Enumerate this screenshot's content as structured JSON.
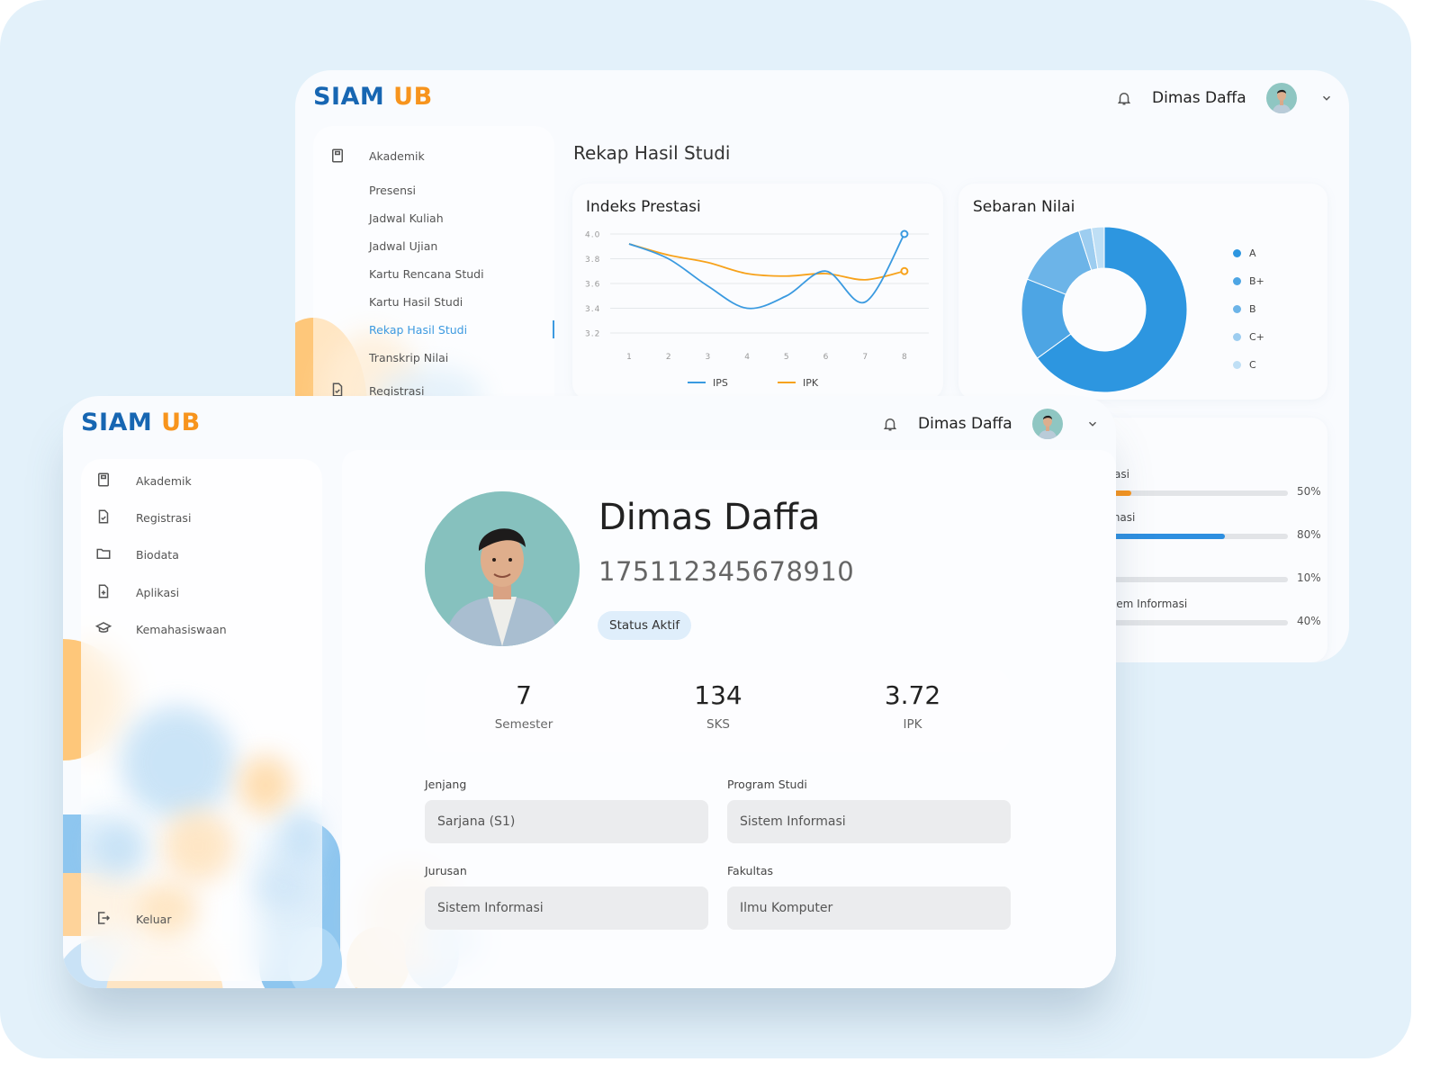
{
  "brand": {
    "part1": "SIAM",
    "part2": "UB",
    "color1": "#1766b2",
    "color2": "#f7941d"
  },
  "user": {
    "name": "Dimas Daffa"
  },
  "back_window": {
    "sidebar": {
      "sections": [
        {
          "label": "Akademik",
          "icon": "book-icon"
        },
        {
          "label": "Registrasi",
          "icon": "file-check-icon"
        }
      ],
      "sub_items": [
        {
          "label": "Presensi",
          "active": false
        },
        {
          "label": "Jadwal Kuliah",
          "active": false
        },
        {
          "label": "Jadwal Ujian",
          "active": false
        },
        {
          "label": "Kartu Rencana Studi",
          "active": false
        },
        {
          "label": "Kartu Hasil Studi",
          "active": false
        },
        {
          "label": "Rekap Hasil Studi",
          "active": true
        },
        {
          "label": "Transkrip Nilai",
          "active": false
        }
      ]
    },
    "page_title": "Rekap Hasil Studi",
    "ip_card": {
      "title": "Indeks Prestasi"
    },
    "grades_card": {
      "title": "Sebaran Nilai"
    },
    "progress": [
      {
        "label": "asi",
        "pct_label": "50%",
        "value": 50,
        "color": "#f7941d"
      },
      {
        "label": "rmasi",
        "pct_label": "80%",
        "value": 80,
        "color": "#2e8fe0"
      },
      {
        "label": "",
        "pct_label": "10%",
        "value": 10,
        "color": "#2e8fe0"
      },
      {
        "label": "istem Informasi",
        "pct_label": "40%",
        "value": 40,
        "color": "#2e8fe0"
      }
    ]
  },
  "front_window": {
    "sidebar": {
      "items": [
        {
          "label": "Akademik",
          "icon": "book-icon"
        },
        {
          "label": "Registrasi",
          "icon": "file-check-icon"
        },
        {
          "label": "Biodata",
          "icon": "folder-icon"
        },
        {
          "label": "Aplikasi",
          "icon": "file-plus-icon"
        },
        {
          "label": "Kemahasiswaan",
          "icon": "graduation-cap-icon"
        }
      ],
      "logout": {
        "label": "Keluar",
        "icon": "logout-icon"
      }
    },
    "profile": {
      "name": "Dimas Daffa",
      "nim": "175112345678910",
      "status": "Status Aktif"
    },
    "stats": [
      {
        "value": "7",
        "label": "Semester"
      },
      {
        "value": "134",
        "label": "SKS"
      },
      {
        "value": "3.72",
        "label": "IPK"
      }
    ],
    "fields": [
      {
        "label": "Jenjang",
        "value": "Sarjana (S1)"
      },
      {
        "label": "Program Studi",
        "value": "Sistem Informasi"
      },
      {
        "label": "Jurusan",
        "value": "Sistem Informasi"
      },
      {
        "label": "Fakultas",
        "value": "Ilmu Komputer"
      }
    ]
  },
  "chart_data": [
    {
      "type": "line",
      "title": "Indeks Prestasi",
      "x": [
        1,
        2,
        3,
        4,
        5,
        6,
        7,
        8
      ],
      "series": [
        {
          "name": "IPS",
          "color": "#3a9ae0",
          "values": [
            3.92,
            3.8,
            3.58,
            3.4,
            3.5,
            3.7,
            3.45,
            4.0
          ]
        },
        {
          "name": "IPK",
          "color": "#f7a21b",
          "values": [
            3.92,
            3.83,
            3.77,
            3.68,
            3.66,
            3.68,
            3.63,
            3.7
          ]
        }
      ],
      "ylim": [
        3.2,
        4.0
      ],
      "yticks": [
        "4.0",
        "3.8",
        "3.6",
        "3.4",
        "3.2"
      ],
      "xlabel": "",
      "ylabel": "",
      "grid": true,
      "legend_position": "bottom"
    },
    {
      "type": "pie",
      "title": "Sebaran Nilai",
      "donut": true,
      "categories": [
        "A",
        "B+",
        "B",
        "C+",
        "C"
      ],
      "values": [
        65,
        16,
        14,
        2.5,
        2.5
      ],
      "colors": [
        "#2d96e0",
        "#4da5e4",
        "#6cb4e8",
        "#9dcdf0",
        "#bfdff5"
      ],
      "legend_position": "right"
    }
  ]
}
